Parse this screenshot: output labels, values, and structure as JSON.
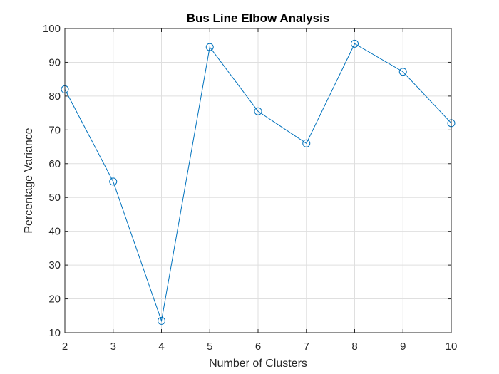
{
  "chart_data": {
    "type": "line",
    "title": "Bus Line Elbow Analysis",
    "xlabel": "Number of Clusters",
    "ylabel": "Percentage Variance",
    "x": [
      2,
      3,
      4,
      5,
      6,
      7,
      8,
      9,
      10
    ],
    "xticks": [
      "2",
      "3",
      "4",
      "5",
      "6",
      "7",
      "8",
      "9",
      "10"
    ],
    "yticks": [
      "10",
      "20",
      "30",
      "40",
      "50",
      "60",
      "70",
      "80",
      "90",
      "100"
    ],
    "xlim": [
      2,
      10
    ],
    "ylim": [
      10,
      100
    ],
    "grid": true,
    "marker": "circle",
    "series": [
      {
        "values": [
          82,
          54.7,
          13.5,
          94.5,
          75.5,
          66,
          95.5,
          87.2,
          72
        ]
      }
    ],
    "colors": {
      "line": "#0072BD",
      "grid": "#dfdfdf",
      "axis": "#262626"
    }
  }
}
